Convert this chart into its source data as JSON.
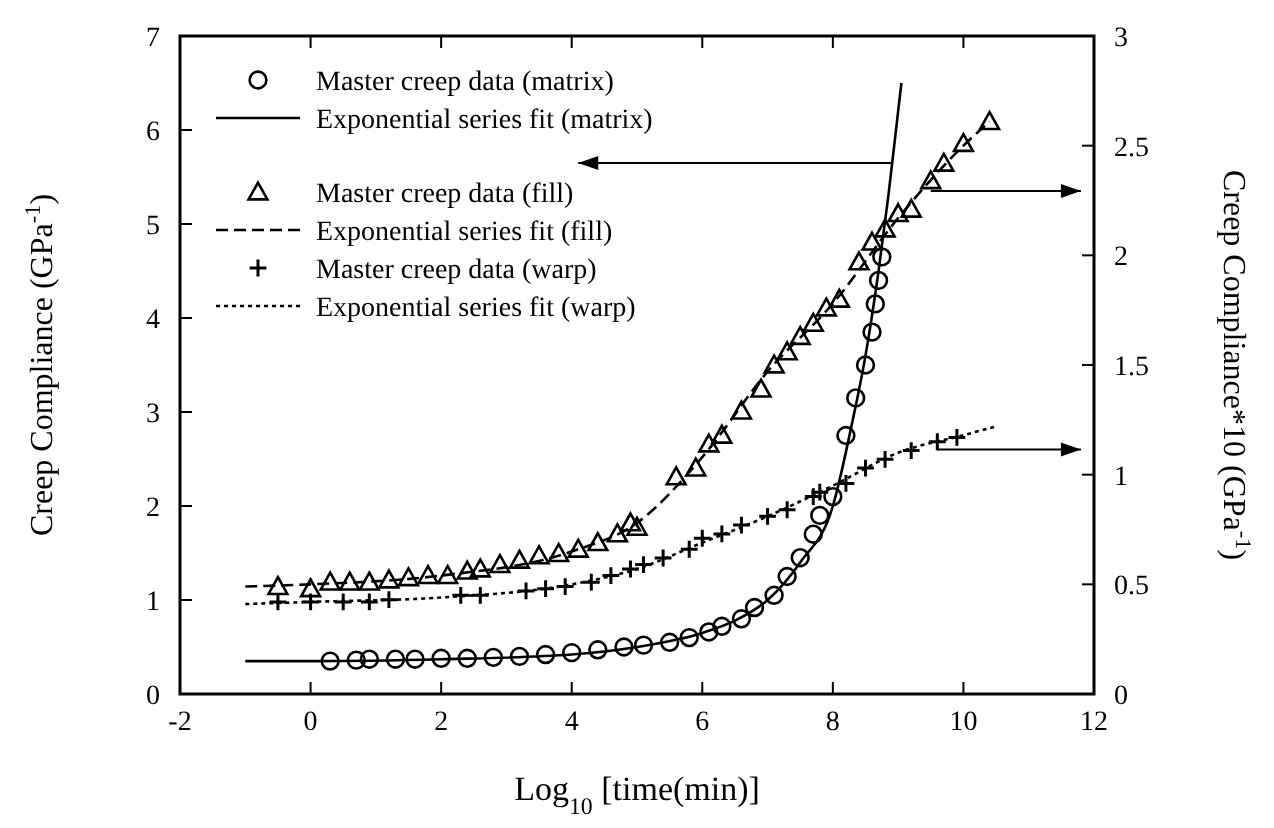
{
  "chart_data": {
    "type": "scatter",
    "xlabel": "Log$_{10}$ [time(min)]",
    "ylabel": "Creep Compliance (GPa$^{-1}$)",
    "y2label": "Creep Compliance*10 (GPa$^{-1}$)",
    "xlim": [
      -2,
      12
    ],
    "xticks": [
      -2,
      0,
      2,
      4,
      6,
      8,
      10,
      12
    ],
    "ylim": [
      0,
      7
    ],
    "yticks": [
      0,
      1,
      2,
      3,
      4,
      5,
      6,
      7
    ],
    "y2lim": [
      0,
      3
    ],
    "y2ticks": [
      0,
      0.5,
      1,
      1.5,
      2,
      2.5,
      3
    ],
    "legend": "top left",
    "grid": false,
    "series": [
      {
        "name": "Master creep data (matrix)",
        "type": "scatter",
        "marker": "circle",
        "color": "#000000",
        "x": [
          0.3,
          0.7,
          0.9,
          1.3,
          1.6,
          2,
          2.4,
          2.8,
          3.2,
          3.6,
          4.0,
          4.4,
          4.8,
          5.1,
          5.5,
          5.8,
          6.1,
          6.3,
          6.6,
          6.8,
          7.1,
          7.3,
          7.5,
          7.7,
          7.8,
          8.0,
          8.2,
          8.35,
          8.5,
          8.6,
          8.65,
          8.7,
          8.75
        ],
        "values": [
          0.35,
          0.36,
          0.37,
          0.37,
          0.37,
          0.38,
          0.38,
          0.39,
          0.4,
          0.42,
          0.44,
          0.47,
          0.5,
          0.52,
          0.55,
          0.6,
          0.66,
          0.72,
          0.8,
          0.92,
          1.05,
          1.25,
          1.45,
          1.7,
          1.9,
          2.1,
          2.75,
          3.15,
          3.5,
          3.85,
          4.15,
          4.4,
          4.65
        ]
      },
      {
        "name": "Exponential series fit (matrix)",
        "type": "line",
        "line_style": "solid",
        "color": "#000000",
        "x": [
          -1,
          0,
          2,
          4,
          5,
          6,
          6.5,
          7,
          7.5,
          8,
          8.3,
          8.5,
          8.7,
          8.85,
          9.0,
          9.05
        ],
        "values": [
          0.35,
          0.35,
          0.37,
          0.42,
          0.5,
          0.65,
          0.78,
          1.0,
          1.4,
          2.0,
          2.9,
          3.6,
          4.5,
          5.3,
          6.2,
          6.5
        ]
      },
      {
        "name": "Master creep data (fill)",
        "type": "scatter",
        "marker": "triangle",
        "axis": "y2",
        "color": "#000000",
        "x": [
          -0.5,
          0,
          0.3,
          0.6,
          0.9,
          1.2,
          1.5,
          1.8,
          2.1,
          2.4,
          2.6,
          2.9,
          3.2,
          3.5,
          3.8,
          4.1,
          4.4,
          4.7,
          4.9,
          5.0,
          5.6,
          5.9,
          6.1,
          6.3,
          6.6,
          6.9,
          7.1,
          7.3,
          7.5,
          7.7,
          7.9,
          8.1,
          8.4,
          8.6,
          8.8,
          9.0,
          9.2,
          9.5,
          9.7,
          10.0,
          10.4
        ],
        "values": [
          0.49,
          0.48,
          0.51,
          0.51,
          0.51,
          0.52,
          0.53,
          0.54,
          0.54,
          0.56,
          0.57,
          0.59,
          0.61,
          0.63,
          0.64,
          0.66,
          0.69,
          0.73,
          0.78,
          0.76,
          0.99,
          1.03,
          1.14,
          1.18,
          1.29,
          1.39,
          1.5,
          1.56,
          1.63,
          1.69,
          1.76,
          1.8,
          1.97,
          2.06,
          2.12,
          2.19,
          2.21,
          2.34,
          2.42,
          2.51,
          2.61
        ]
      },
      {
        "name": "Exponential series fit (fill)",
        "type": "line",
        "line_style": "dashed",
        "axis": "y2",
        "color": "#000000",
        "x": [
          -1,
          0,
          2,
          4,
          5,
          6,
          7,
          8,
          9,
          10,
          10.4
        ],
        "values": [
          0.49,
          0.5,
          0.54,
          0.65,
          0.78,
          1.08,
          1.47,
          1.78,
          2.17,
          2.5,
          2.61
        ]
      },
      {
        "name": "Master creep data (warp)",
        "type": "scatter",
        "marker": "cross",
        "axis": "y2",
        "color": "#000000",
        "x": [
          -0.5,
          0,
          0.5,
          0.9,
          1.2,
          2.3,
          2.6,
          3.3,
          3.6,
          3.9,
          4.3,
          4.6,
          4.9,
          5.1,
          5.4,
          5.8,
          6.0,
          6.3,
          6.6,
          7.0,
          7.3,
          7.7,
          7.8,
          8.2,
          8.5,
          8.8,
          9.2,
          9.6,
          9.9
        ],
        "values": [
          0.42,
          0.42,
          0.42,
          0.42,
          0.43,
          0.45,
          0.45,
          0.47,
          0.48,
          0.49,
          0.51,
          0.54,
          0.57,
          0.59,
          0.62,
          0.66,
          0.71,
          0.73,
          0.77,
          0.81,
          0.84,
          0.9,
          0.92,
          0.96,
          1.03,
          1.07,
          1.11,
          1.15,
          1.17
        ]
      },
      {
        "name": "Exponential series fit (warp)",
        "type": "line",
        "line_style": "dotted",
        "axis": "y2",
        "color": "#000000",
        "x": [
          -1,
          0,
          2,
          4,
          5,
          6,
          7,
          8,
          9,
          10,
          10.5
        ],
        "values": [
          0.41,
          0.42,
          0.44,
          0.5,
          0.57,
          0.69,
          0.81,
          0.95,
          1.1,
          1.18,
          1.22
        ]
      }
    ]
  }
}
